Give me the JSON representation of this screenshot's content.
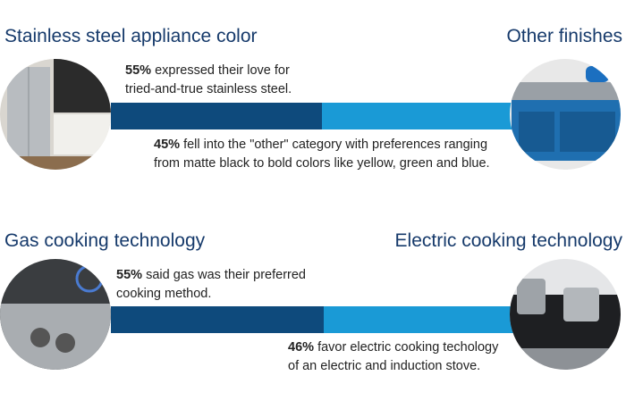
{
  "panels": [
    {
      "left_title": "Stainless steel appliance color",
      "right_title": "Other finishes",
      "left_note": {
        "highlight": "55%",
        "lines": [
          "expressed their love for",
          "tried-and-true stainless steel."
        ]
      },
      "right_note": {
        "highlight": "45%",
        "lines": [
          "fell into the \"other\" category with preferences ranging",
          "from matte black to bold colors like yellow, green and blue."
        ]
      }
    },
    {
      "left_title": "Gas cooking technology",
      "right_title": "Electric cooking technology",
      "left_note": {
        "highlight": "55%",
        "lines": [
          "said gas was their preferred",
          "cooking method."
        ]
      },
      "right_note": {
        "highlight": "46%",
        "lines": [
          "favor electric cooking techology",
          "of an electric and induction stove."
        ]
      }
    }
  ]
}
